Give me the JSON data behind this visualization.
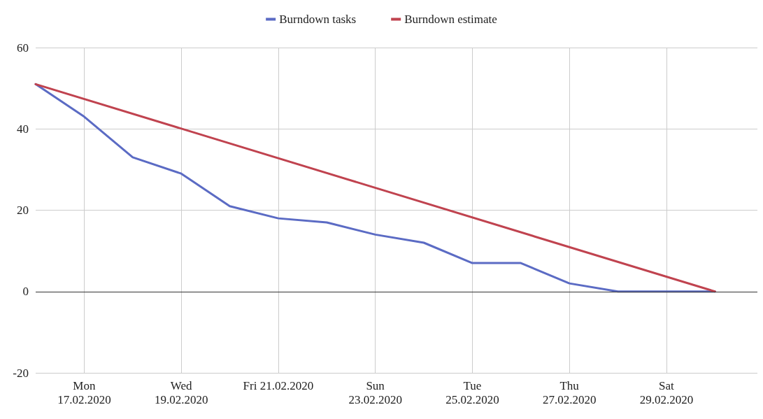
{
  "chart_data": {
    "type": "line",
    "x": [
      "2020-02-16",
      "2020-02-17",
      "2020-02-18",
      "2020-02-19",
      "2020-02-20",
      "2020-02-21",
      "2020-02-22",
      "2020-02-23",
      "2020-02-24",
      "2020-02-25",
      "2020-02-26",
      "2020-02-27",
      "2020-02-28",
      "2020-02-29",
      "2020-03-01"
    ],
    "series": [
      {
        "name": "Burndown tasks",
        "color": "#5b6bc4",
        "values": [
          51,
          43,
          33,
          29,
          21,
          18,
          17,
          14,
          12,
          7,
          7,
          2,
          0,
          0,
          0
        ]
      },
      {
        "name": "Burndown estimate",
        "color": "#c0434f",
        "x": [
          "2020-02-16",
          "2020-03-01"
        ],
        "values": [
          51,
          0
        ]
      }
    ],
    "xlim": [
      "2020-02-16",
      "2020-03-01T21:00"
    ],
    "xticks": [
      {
        "value": "2020-02-17",
        "label": "Mon\n17.02.2020"
      },
      {
        "value": "2020-02-19",
        "label": "Wed\n19.02.2020"
      },
      {
        "value": "2020-02-21",
        "label": "Fri 21.02.2020"
      },
      {
        "value": "2020-02-23",
        "label": "Sun\n23.02.2020"
      },
      {
        "value": "2020-02-25",
        "label": "Tue\n25.02.2020"
      },
      {
        "value": "2020-02-27",
        "label": "Thu\n27.02.2020"
      },
      {
        "value": "2020-02-29",
        "label": "Sat\n29.02.2020"
      }
    ],
    "ylim": [
      -20,
      60
    ],
    "yticks": [
      -20,
      0,
      20,
      40,
      60
    ],
    "ref_lines": [
      {
        "axis": "y",
        "value": 0,
        "color": "#333333"
      }
    ],
    "grid": true,
    "legend": "top",
    "marker": "none",
    "line_style": "solid"
  }
}
